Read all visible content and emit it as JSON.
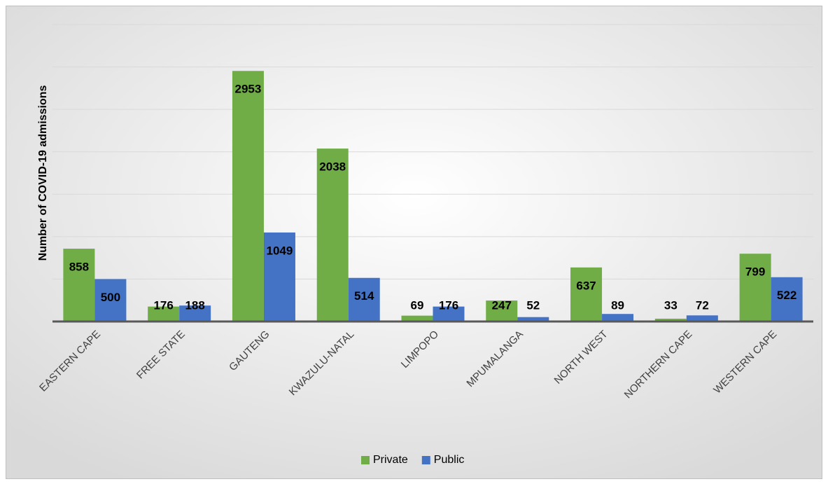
{
  "chart_data": {
    "type": "grouped-bar",
    "y_label": "Number of COVID-19 admissions",
    "categories": [
      "EASTERN CAPE",
      "FREE STATE",
      "GAUTENG",
      "KWAZULU-NATAL",
      "LIMPOPO",
      "MPUMALANGA",
      "NORTH WEST",
      "NORTHERN CAPE",
      "WESTERN CAPE"
    ],
    "series": [
      {
        "name": "Private",
        "color": "#70ad47",
        "values": [
          858,
          176,
          2953,
          2038,
          69,
          247,
          637,
          33,
          799
        ]
      },
      {
        "name": "Public",
        "color": "#4472c4",
        "values": [
          500,
          188,
          1049,
          514,
          176,
          52,
          89,
          72,
          522
        ]
      }
    ],
    "ylim": [
      0,
      3500
    ],
    "yticks": [
      0,
      500,
      1000,
      1500,
      2000,
      2500,
      3000,
      3500
    ],
    "grid": true,
    "legend": "bottom"
  }
}
